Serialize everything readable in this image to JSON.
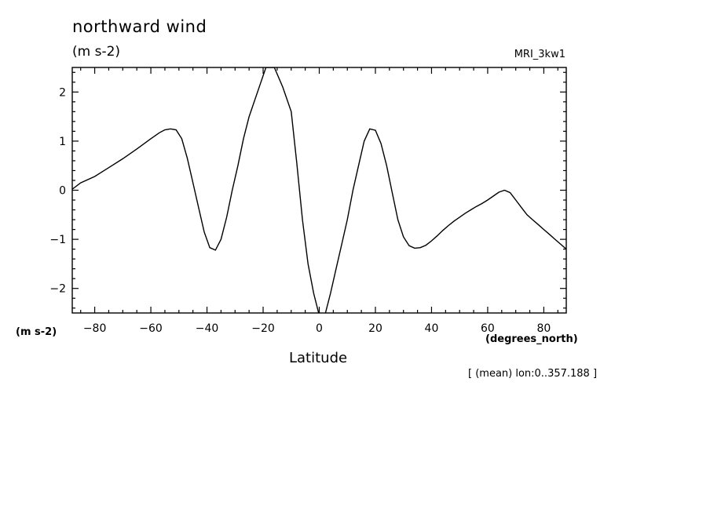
{
  "header": {
    "title": "northward wind",
    "units": "(m s-2)",
    "model": "MRI_3kw1"
  },
  "axes": {
    "y_units": "(m s-2)",
    "x_units": "(degrees_north)",
    "x_label": "Latitude"
  },
  "footnote": "[ (mean) lon:0..357.188 ]",
  "chart_data": {
    "type": "line",
    "title": "northward wind",
    "xlabel": "Latitude",
    "ylabel": "(m s-2)",
    "xlim": [
      -88,
      88
    ],
    "ylim": [
      -2.5,
      2.5
    ],
    "xticks": [
      -80,
      -60,
      -40,
      -20,
      0,
      20,
      40,
      60,
      80
    ],
    "yticks": [
      -2,
      -1,
      0,
      1,
      2
    ],
    "grid": false,
    "legend": "none",
    "line_color": "#000000",
    "series": [
      {
        "x": [
          -88,
          -85,
          -80,
          -75,
          -70,
          -65,
          -60,
          -57,
          -55,
          -53,
          -51,
          -49,
          -47,
          -45,
          -43,
          -41,
          -39,
          -37,
          -35,
          -33,
          -31,
          -29,
          -27,
          -25,
          -22,
          -19,
          -16,
          -13,
          -10,
          -8,
          -6,
          -4,
          -2,
          0,
          2,
          4,
          6,
          8,
          10,
          12,
          14,
          16,
          18,
          20,
          22,
          24,
          26,
          28,
          30,
          32,
          34,
          36,
          38,
          40,
          42,
          44,
          46,
          48,
          50,
          52,
          54,
          56,
          58,
          60,
          62,
          64,
          66,
          68,
          70,
          72,
          74,
          76,
          78,
          80,
          82,
          84,
          86,
          88
        ],
        "y": [
          0.02,
          0.15,
          0.28,
          0.46,
          0.64,
          0.84,
          1.05,
          1.17,
          1.23,
          1.25,
          1.23,
          1.05,
          0.65,
          0.15,
          -0.35,
          -0.85,
          -1.17,
          -1.22,
          -1.0,
          -0.55,
          0.0,
          0.5,
          1.05,
          1.5,
          2.0,
          2.5,
          2.5,
          2.1,
          1.6,
          0.55,
          -0.6,
          -1.5,
          -2.1,
          -2.55,
          -2.55,
          -2.1,
          -1.6,
          -1.1,
          -0.6,
          0.0,
          0.5,
          1.0,
          1.25,
          1.22,
          0.95,
          0.5,
          -0.05,
          -0.6,
          -0.95,
          -1.13,
          -1.18,
          -1.17,
          -1.12,
          -1.03,
          -0.93,
          -0.82,
          -0.72,
          -0.63,
          -0.55,
          -0.47,
          -0.4,
          -0.33,
          -0.27,
          -0.2,
          -0.12,
          -0.04,
          0.0,
          -0.05,
          -0.2,
          -0.35,
          -0.5,
          -0.6,
          -0.7,
          -0.8,
          -0.9,
          -1.0,
          -1.1,
          -1.2
        ]
      }
    ]
  }
}
